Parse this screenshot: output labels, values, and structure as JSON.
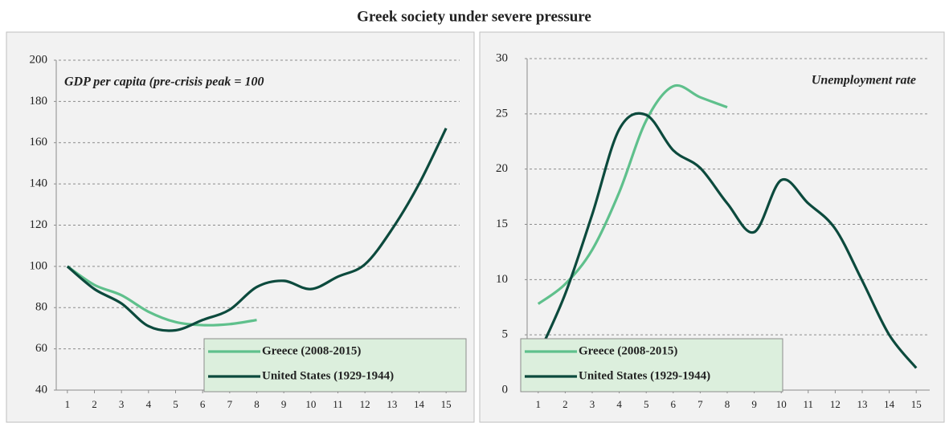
{
  "title": "Greek society under severe pressure",
  "chart_data": [
    {
      "type": "line",
      "annotation": "GDP per capita (pre-crisis peak = 100",
      "x": [
        1,
        2,
        3,
        4,
        5,
        6,
        7,
        8,
        9,
        10,
        11,
        12,
        13,
        14,
        15
      ],
      "xlim": [
        0.5,
        15.5
      ],
      "xticks": [
        1,
        2,
        3,
        4,
        5,
        6,
        7,
        8,
        9,
        10,
        11,
        12,
        13,
        14,
        15
      ],
      "ylim": [
        40,
        200
      ],
      "yticks": [
        40,
        60,
        80,
        100,
        120,
        140,
        160,
        180,
        200
      ],
      "grid": true,
      "legend": "lower right",
      "series": [
        {
          "name": "Greece (2008-2015)",
          "color": "#5fc08c",
          "values": [
            100,
            91,
            86,
            78,
            73,
            71.5,
            72,
            74,
            null,
            null,
            null,
            null,
            null,
            null,
            null
          ]
        },
        {
          "name": "United States (1929-1944)",
          "color": "#0c4a3d",
          "values": [
            100,
            89,
            82,
            71,
            69,
            74,
            79,
            90,
            93,
            89,
            95,
            101,
            118,
            140,
            167
          ]
        }
      ]
    },
    {
      "type": "line",
      "annotation": "Unemployment rate",
      "x": [
        1,
        2,
        3,
        4,
        5,
        6,
        7,
        8,
        9,
        10,
        11,
        12,
        13,
        14,
        15
      ],
      "xlim": [
        0.5,
        15.5
      ],
      "xticks": [
        1,
        2,
        3,
        4,
        5,
        6,
        7,
        8,
        9,
        10,
        11,
        12,
        13,
        14,
        15
      ],
      "ylim": [
        0,
        30
      ],
      "yticks": [
        0,
        5,
        10,
        15,
        20,
        25,
        30
      ],
      "grid": true,
      "legend": "lower left",
      "series": [
        {
          "name": "Greece (2008-2015)",
          "color": "#5fc08c",
          "values": [
            7.8,
            9.6,
            12.7,
            17.9,
            24.4,
            27.5,
            26.5,
            25.6,
            null,
            null,
            null,
            null,
            null,
            null,
            null
          ]
        },
        {
          "name": "United States (1929-1944)",
          "color": "#0c4a3d",
          "values": [
            3.2,
            8.7,
            15.9,
            23.6,
            24.9,
            21.7,
            20.1,
            16.9,
            14.3,
            19.0,
            16.9,
            14.6,
            9.9,
            5.0,
            2.0
          ]
        }
      ]
    }
  ]
}
